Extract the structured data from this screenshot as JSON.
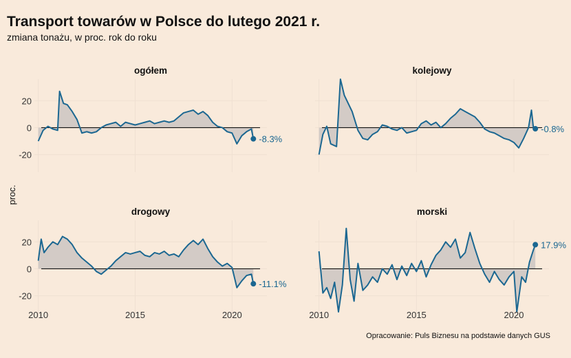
{
  "title": "Transport towarów w Polsce do lutego 2021 r.",
  "subtitle": "zmiana tonażu, w proc. rok do roku",
  "caption": "Opracowanie: Puls Biznesu na podstawie danych GUS",
  "colors": {
    "background": "#f9eadb",
    "line": "#1b6791",
    "area": "#d3cbc6",
    "zero_line": "#111111"
  },
  "chart_data": {
    "type": "area",
    "ylabel": "proc.",
    "ylim": [
      -33,
      36
    ],
    "xlim": [
      2009.8,
      2021.8
    ],
    "x_ticks": [
      2010,
      2015,
      2020
    ],
    "y_ticks": [
      -20,
      0,
      20
    ],
    "grid": true,
    "panels": [
      {
        "name": "ogółem",
        "end_label": "-8.3%",
        "end_value": -8.3,
        "points": [
          [
            2010.0,
            -10
          ],
          [
            2010.25,
            -2
          ],
          [
            2010.5,
            1
          ],
          [
            2010.75,
            -1
          ],
          [
            2011.0,
            -2
          ],
          [
            2011.1,
            27
          ],
          [
            2011.3,
            18
          ],
          [
            2011.5,
            17
          ],
          [
            2011.75,
            12
          ],
          [
            2012.0,
            6
          ],
          [
            2012.25,
            -4
          ],
          [
            2012.5,
            -3
          ],
          [
            2012.75,
            -4
          ],
          [
            2013.0,
            -3
          ],
          [
            2013.25,
            0
          ],
          [
            2013.5,
            2
          ],
          [
            2013.75,
            3
          ],
          [
            2014.0,
            4
          ],
          [
            2014.25,
            1
          ],
          [
            2014.5,
            4
          ],
          [
            2014.75,
            3
          ],
          [
            2015.0,
            2
          ],
          [
            2015.25,
            3
          ],
          [
            2015.5,
            4
          ],
          [
            2015.75,
            5
          ],
          [
            2016.0,
            3
          ],
          [
            2016.25,
            4
          ],
          [
            2016.5,
            5
          ],
          [
            2016.75,
            4
          ],
          [
            2017.0,
            5
          ],
          [
            2017.25,
            8
          ],
          [
            2017.5,
            11
          ],
          [
            2017.75,
            12
          ],
          [
            2018.0,
            13
          ],
          [
            2018.25,
            10
          ],
          [
            2018.5,
            12
          ],
          [
            2018.75,
            9
          ],
          [
            2019.0,
            4
          ],
          [
            2019.25,
            1
          ],
          [
            2019.5,
            0
          ],
          [
            2019.75,
            -3
          ],
          [
            2020.0,
            -4
          ],
          [
            2020.25,
            -12
          ],
          [
            2020.5,
            -6
          ],
          [
            2020.75,
            -3
          ],
          [
            2021.0,
            -1
          ],
          [
            2021.1,
            -8.3
          ]
        ]
      },
      {
        "name": "kolejowy",
        "end_label": "-0.8%",
        "end_value": -0.8,
        "points": [
          [
            2010.0,
            -20
          ],
          [
            2010.2,
            -5
          ],
          [
            2010.4,
            1
          ],
          [
            2010.6,
            -12
          ],
          [
            2010.9,
            -14
          ],
          [
            2011.1,
            36
          ],
          [
            2011.3,
            24
          ],
          [
            2011.5,
            18
          ],
          [
            2011.7,
            12
          ],
          [
            2012.0,
            -2
          ],
          [
            2012.25,
            -8
          ],
          [
            2012.5,
            -9
          ],
          [
            2012.75,
            -5
          ],
          [
            2013.0,
            -3
          ],
          [
            2013.25,
            2
          ],
          [
            2013.5,
            1
          ],
          [
            2013.75,
            -1
          ],
          [
            2014.0,
            -2
          ],
          [
            2014.25,
            0
          ],
          [
            2014.5,
            -4
          ],
          [
            2014.75,
            -3
          ],
          [
            2015.0,
            -2
          ],
          [
            2015.25,
            3
          ],
          [
            2015.5,
            5
          ],
          [
            2015.75,
            2
          ],
          [
            2016.0,
            4
          ],
          [
            2016.25,
            0
          ],
          [
            2016.5,
            3
          ],
          [
            2016.75,
            7
          ],
          [
            2017.0,
            10
          ],
          [
            2017.25,
            14
          ],
          [
            2017.5,
            12
          ],
          [
            2017.75,
            10
          ],
          [
            2018.0,
            8
          ],
          [
            2018.25,
            4
          ],
          [
            2018.5,
            -1
          ],
          [
            2018.75,
            -3
          ],
          [
            2019.0,
            -4
          ],
          [
            2019.25,
            -6
          ],
          [
            2019.5,
            -8
          ],
          [
            2019.75,
            -9
          ],
          [
            2020.0,
            -11
          ],
          [
            2020.25,
            -15
          ],
          [
            2020.5,
            -8
          ],
          [
            2020.75,
            0
          ],
          [
            2020.9,
            13
          ],
          [
            2021.0,
            0
          ],
          [
            2021.1,
            -0.8
          ]
        ]
      },
      {
        "name": "drogowy",
        "end_label": "-11.1%",
        "end_value": -11.1,
        "points": [
          [
            2010.0,
            6
          ],
          [
            2010.15,
            22
          ],
          [
            2010.3,
            12
          ],
          [
            2010.5,
            16
          ],
          [
            2010.75,
            20
          ],
          [
            2011.0,
            18
          ],
          [
            2011.25,
            24
          ],
          [
            2011.5,
            22
          ],
          [
            2011.75,
            18
          ],
          [
            2012.0,
            12
          ],
          [
            2012.25,
            8
          ],
          [
            2012.5,
            5
          ],
          [
            2012.75,
            2
          ],
          [
            2013.0,
            -2
          ],
          [
            2013.25,
            -4
          ],
          [
            2013.5,
            -1
          ],
          [
            2013.75,
            2
          ],
          [
            2014.0,
            6
          ],
          [
            2014.25,
            9
          ],
          [
            2014.5,
            12
          ],
          [
            2014.75,
            11
          ],
          [
            2015.0,
            12
          ],
          [
            2015.25,
            13
          ],
          [
            2015.5,
            10
          ],
          [
            2015.75,
            9
          ],
          [
            2016.0,
            12
          ],
          [
            2016.25,
            11
          ],
          [
            2016.5,
            13
          ],
          [
            2016.75,
            10
          ],
          [
            2017.0,
            11
          ],
          [
            2017.25,
            9
          ],
          [
            2017.5,
            14
          ],
          [
            2017.75,
            18
          ],
          [
            2018.0,
            21
          ],
          [
            2018.25,
            18
          ],
          [
            2018.5,
            22
          ],
          [
            2018.75,
            15
          ],
          [
            2019.0,
            9
          ],
          [
            2019.25,
            5
          ],
          [
            2019.5,
            2
          ],
          [
            2019.75,
            4
          ],
          [
            2020.0,
            1
          ],
          [
            2020.25,
            -14
          ],
          [
            2020.5,
            -9
          ],
          [
            2020.75,
            -5
          ],
          [
            2021.0,
            -4
          ],
          [
            2021.1,
            -11.1
          ]
        ]
      },
      {
        "name": "morski",
        "end_label": "17.9%",
        "end_value": 17.9,
        "points": [
          [
            2010.0,
            13
          ],
          [
            2010.2,
            -18
          ],
          [
            2010.4,
            -14
          ],
          [
            2010.6,
            -22
          ],
          [
            2010.8,
            -10
          ],
          [
            2011.0,
            -32
          ],
          [
            2011.2,
            -12
          ],
          [
            2011.4,
            30
          ],
          [
            2011.6,
            -8
          ],
          [
            2011.8,
            -24
          ],
          [
            2012.0,
            4
          ],
          [
            2012.25,
            -16
          ],
          [
            2012.5,
            -12
          ],
          [
            2012.75,
            -6
          ],
          [
            2013.0,
            -10
          ],
          [
            2013.25,
            0
          ],
          [
            2013.5,
            -4
          ],
          [
            2013.75,
            3
          ],
          [
            2014.0,
            -8
          ],
          [
            2014.25,
            2
          ],
          [
            2014.5,
            -5
          ],
          [
            2014.75,
            4
          ],
          [
            2015.0,
            -2
          ],
          [
            2015.25,
            6
          ],
          [
            2015.5,
            -6
          ],
          [
            2015.75,
            3
          ],
          [
            2016.0,
            10
          ],
          [
            2016.25,
            14
          ],
          [
            2016.5,
            20
          ],
          [
            2016.75,
            16
          ],
          [
            2017.0,
            22
          ],
          [
            2017.25,
            8
          ],
          [
            2017.5,
            12
          ],
          [
            2017.75,
            27
          ],
          [
            2018.0,
            15
          ],
          [
            2018.25,
            4
          ],
          [
            2018.5,
            -4
          ],
          [
            2018.75,
            -10
          ],
          [
            2019.0,
            -2
          ],
          [
            2019.25,
            -8
          ],
          [
            2019.5,
            -12
          ],
          [
            2019.75,
            -6
          ],
          [
            2020.0,
            -2
          ],
          [
            2020.15,
            -32
          ],
          [
            2020.4,
            -6
          ],
          [
            2020.6,
            -10
          ],
          [
            2020.8,
            5
          ],
          [
            2021.0,
            14
          ],
          [
            2021.1,
            17.9
          ]
        ]
      }
    ]
  }
}
